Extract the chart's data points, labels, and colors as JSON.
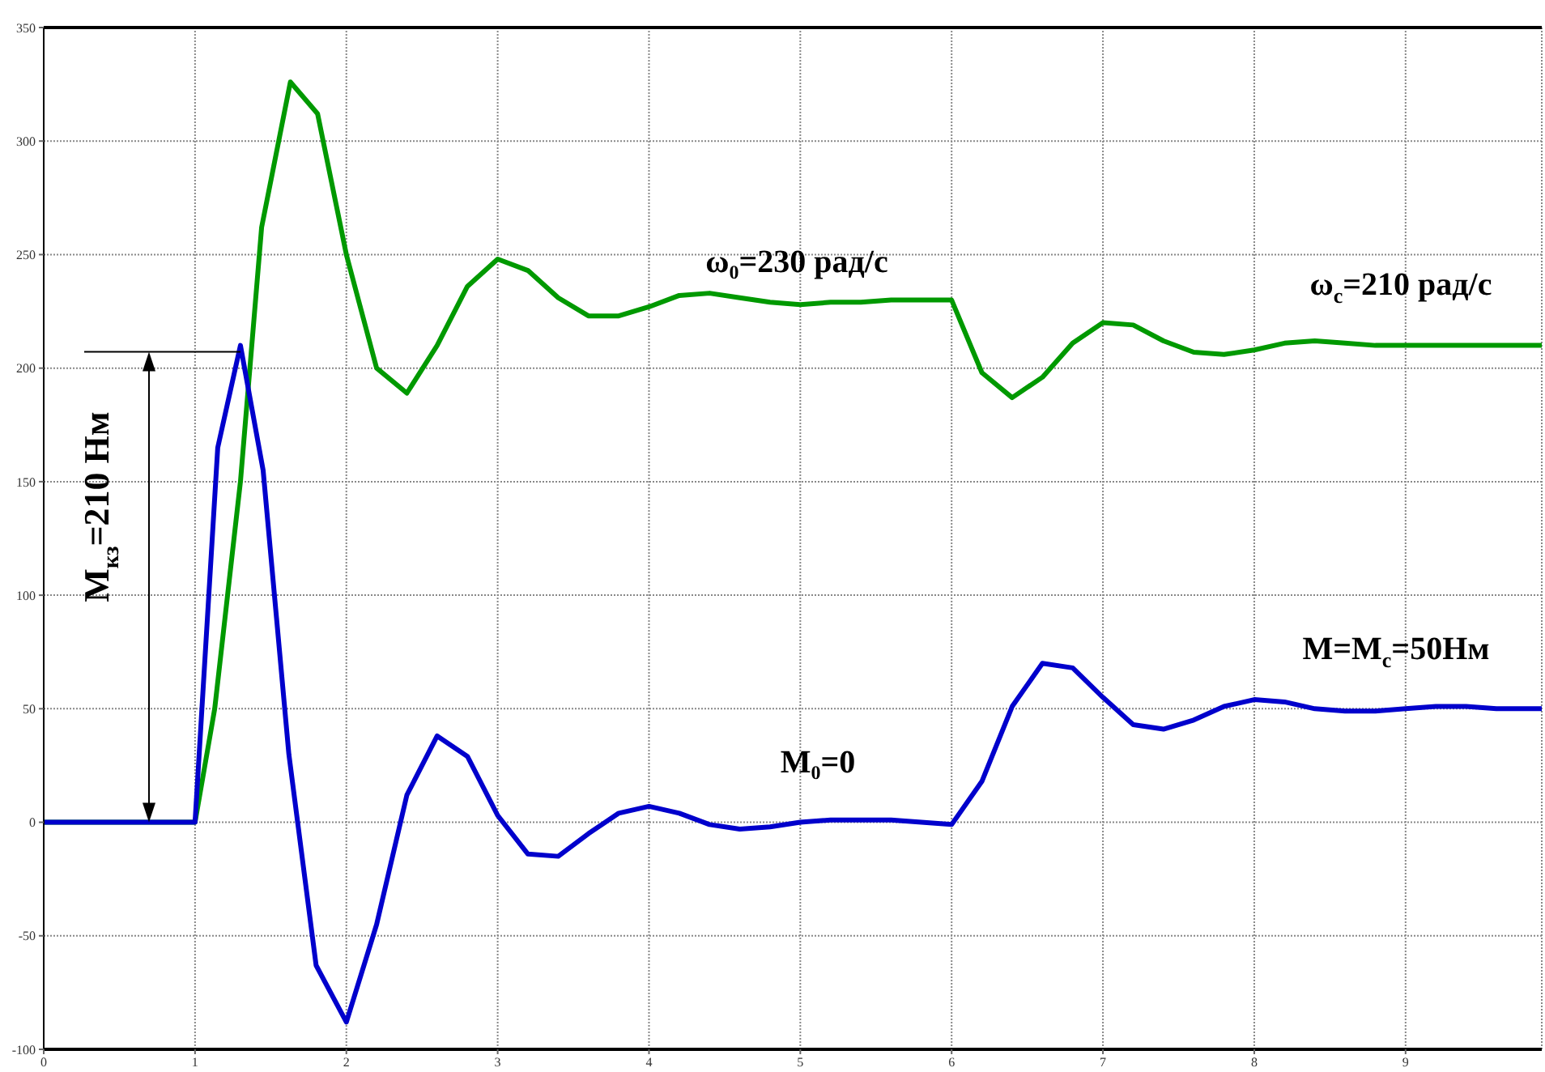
{
  "chart_data": {
    "type": "line",
    "grid": true,
    "marker": "none",
    "line_style": "solid",
    "xlim": [
      0,
      9.9
    ],
    "xticks": [
      0,
      1,
      2,
      3,
      4,
      5,
      6,
      7,
      8,
      9
    ],
    "ylim": [
      -100,
      350
    ],
    "yticks": [
      -100,
      -50,
      0,
      50,
      100,
      150,
      200,
      250,
      300,
      350
    ],
    "series": [
      {
        "color": "#009900",
        "x": [
          0,
          1,
          1.13,
          1.3,
          1.44,
          1.63,
          1.81,
          2.0,
          2.2,
          2.4,
          2.6,
          2.8,
          3.0,
          3.2,
          3.4,
          3.6,
          3.8,
          4.0,
          4.2,
          4.4,
          4.6,
          4.8,
          5.0,
          5.2,
          5.4,
          5.6,
          5.8,
          6.0,
          6.2,
          6.4,
          6.6,
          6.8,
          7.0,
          7.2,
          7.4,
          7.6,
          7.8,
          8.0,
          8.2,
          8.4,
          8.6,
          8.8,
          9.0,
          9.2,
          9.4,
          9.6,
          9.9
        ],
        "values": [
          0,
          0,
          50,
          150,
          262,
          326,
          312,
          250,
          200,
          189,
          210,
          236,
          248,
          243,
          231,
          223,
          223,
          227,
          232,
          233,
          231,
          229,
          228,
          229,
          229,
          230,
          230,
          230,
          198,
          187,
          196,
          211,
          220,
          219,
          212,
          207,
          206,
          208,
          211,
          212,
          211,
          210,
          210,
          210,
          210,
          210,
          210
        ]
      },
      {
        "color": "#0000cc",
        "x": [
          0,
          1,
          1.15,
          1.3,
          1.45,
          1.62,
          1.8,
          2.0,
          2.2,
          2.4,
          2.6,
          2.8,
          3.0,
          3.2,
          3.4,
          3.6,
          3.8,
          4.0,
          4.2,
          4.4,
          4.6,
          4.8,
          5.0,
          5.2,
          5.4,
          5.6,
          5.8,
          6.0,
          6.2,
          6.4,
          6.6,
          6.8,
          7.0,
          7.2,
          7.4,
          7.6,
          7.8,
          8.0,
          8.2,
          8.4,
          8.6,
          8.8,
          9.0,
          9.2,
          9.4,
          9.6,
          9.9
        ],
        "values": [
          0,
          0,
          165,
          210,
          155,
          30,
          -63,
          -88,
          -45,
          12,
          38,
          29,
          3,
          -14,
          -15,
          -5,
          4,
          7,
          4,
          -1,
          -3,
          -2,
          0,
          1,
          1,
          1,
          0,
          -1,
          18,
          51,
          70,
          68,
          55,
          43,
          41,
          45,
          51,
          54,
          53,
          50,
          49,
          49,
          50,
          51,
          51,
          50,
          50
        ]
      }
    ],
    "annotations": [
      "M$_{кз}$=210 Нм",
      "ω₀=230 рад/с",
      "ω$_{c}$=210 рад/с",
      "M₀=0",
      "M=M$_{c}$=50Нм"
    ]
  }
}
